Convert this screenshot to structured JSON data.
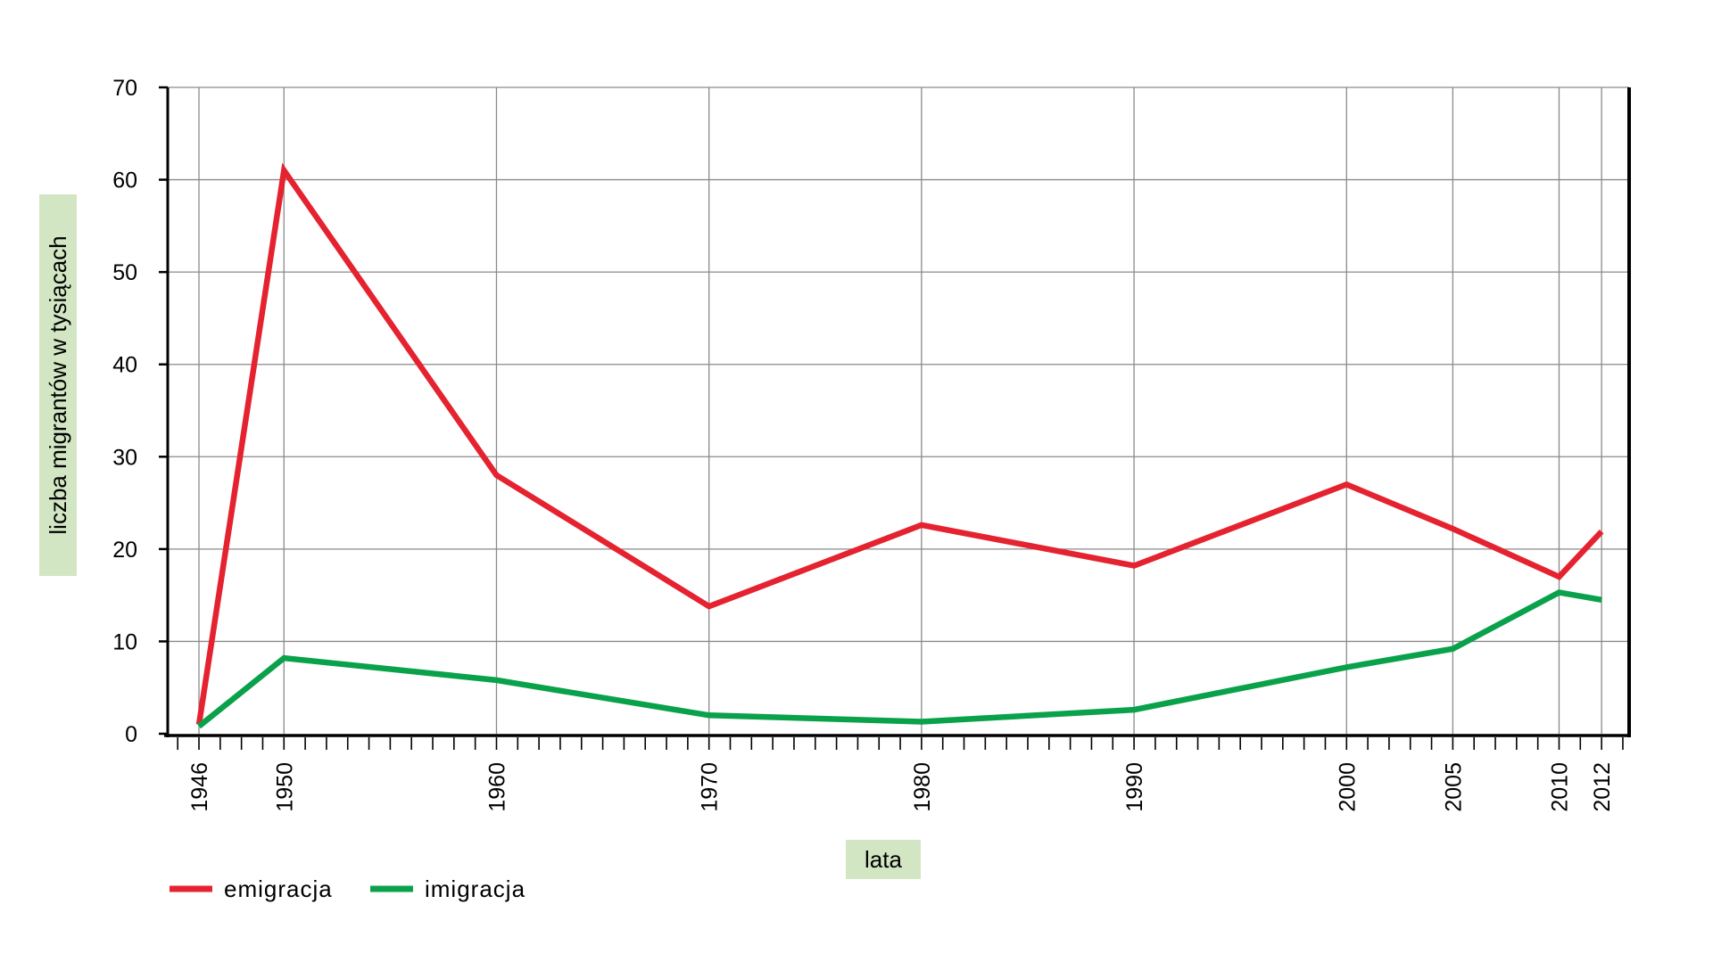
{
  "chart_data": {
    "type": "line",
    "title": "",
    "xlabel": "lata",
    "ylabel": "liczba migrantów w tysiącach",
    "x_ticks": [
      1946,
      1950,
      1960,
      1970,
      1980,
      1990,
      2000,
      2005,
      2010,
      2012
    ],
    "x_range": [
      1945,
      2013
    ],
    "ylim": [
      0,
      70
    ],
    "y_ticks": [
      0,
      10,
      20,
      30,
      40,
      50,
      60,
      70
    ],
    "grid": true,
    "legend_position": "bottom-left",
    "label_background": "#d2e6c3",
    "series": [
      {
        "name": "emigracja",
        "color": "#e52330",
        "points": [
          [
            1946,
            1
          ],
          [
            1950,
            61
          ],
          [
            1960,
            28
          ],
          [
            1970,
            13.8
          ],
          [
            1980,
            22.6
          ],
          [
            1990,
            18.2
          ],
          [
            2000,
            27
          ],
          [
            2005,
            22.2
          ],
          [
            2010,
            17
          ],
          [
            2012,
            21.9
          ]
        ]
      },
      {
        "name": "imigracja",
        "color": "#0aa14b",
        "points": [
          [
            1946,
            0.8
          ],
          [
            1950,
            8.2
          ],
          [
            1960,
            5.8
          ],
          [
            1970,
            2
          ],
          [
            1980,
            1.3
          ],
          [
            1990,
            2.6
          ],
          [
            2000,
            7.2
          ],
          [
            2005,
            9.2
          ],
          [
            2010,
            15.3
          ],
          [
            2012,
            14.5
          ]
        ]
      }
    ]
  }
}
